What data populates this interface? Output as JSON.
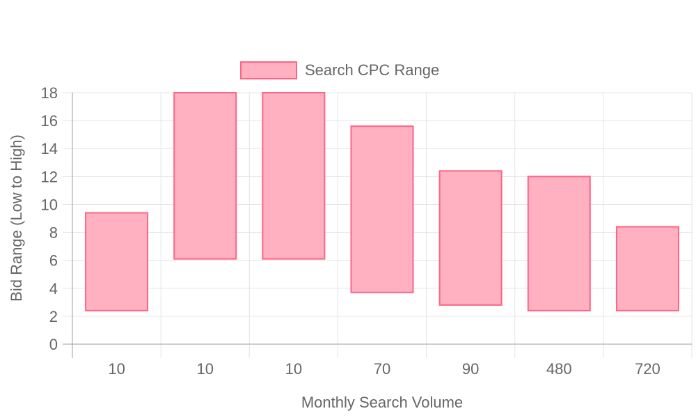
{
  "chart_data": {
    "type": "bar",
    "subtype": "floating-range",
    "categories": [
      "10",
      "10",
      "10",
      "70",
      "90",
      "480",
      "720"
    ],
    "series": [
      {
        "name": "Search CPC Range",
        "ranges": [
          [
            2.4,
            9.4
          ],
          [
            6.1,
            18.0
          ],
          [
            6.1,
            18.0
          ],
          [
            3.7,
            15.6
          ],
          [
            2.8,
            12.4
          ],
          [
            2.4,
            12.0
          ],
          [
            2.4,
            8.4
          ]
        ]
      }
    ],
    "xlabel": "Monthly Search Volume",
    "ylabel": "Bid Range (Low to High)",
    "ylim": [
      0,
      18
    ],
    "yticks": [
      0,
      2,
      4,
      6,
      8,
      10,
      12,
      14,
      16,
      18
    ],
    "grid": true,
    "legend_position": "top",
    "colors": {
      "fill": "#ffb1c1",
      "stroke": "#ff6384",
      "grid": "#e5e5e5",
      "axis": "#9e9e9e",
      "text": "#666666"
    }
  }
}
